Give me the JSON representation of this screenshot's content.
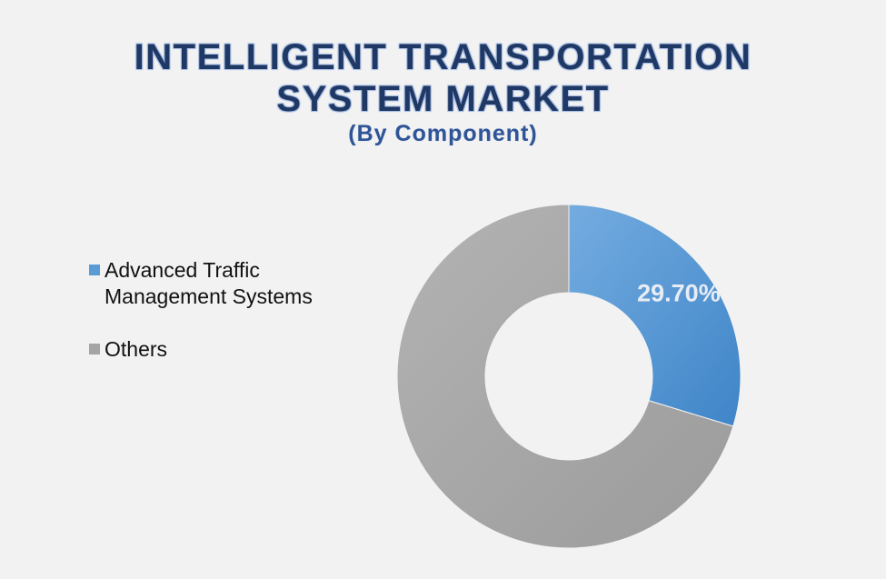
{
  "title": {
    "line1": "INTELLIGENT TRANSPORTATION",
    "line2": "SYSTEM MARKET",
    "subtitle": "(By Component)"
  },
  "chart_data": {
    "type": "pie",
    "style": "donut",
    "categories": [
      "Advanced Traffic Management Systems",
      "Others"
    ],
    "values": [
      29.7,
      70.3
    ],
    "data_labels": [
      "29.70%",
      ""
    ],
    "colors": [
      "#5b9bd5",
      "#a5a5a5"
    ],
    "legend_position": "left",
    "title": "INTELLIGENT TRANSPORTATION SYSTEM MARKET",
    "subtitle": "(By Component)"
  },
  "legend": {
    "items": [
      {
        "label": "Advanced Traffic Management Systems",
        "color": "#5b9bd5"
      },
      {
        "label": "Others",
        "color": "#a5a5a5"
      }
    ]
  }
}
